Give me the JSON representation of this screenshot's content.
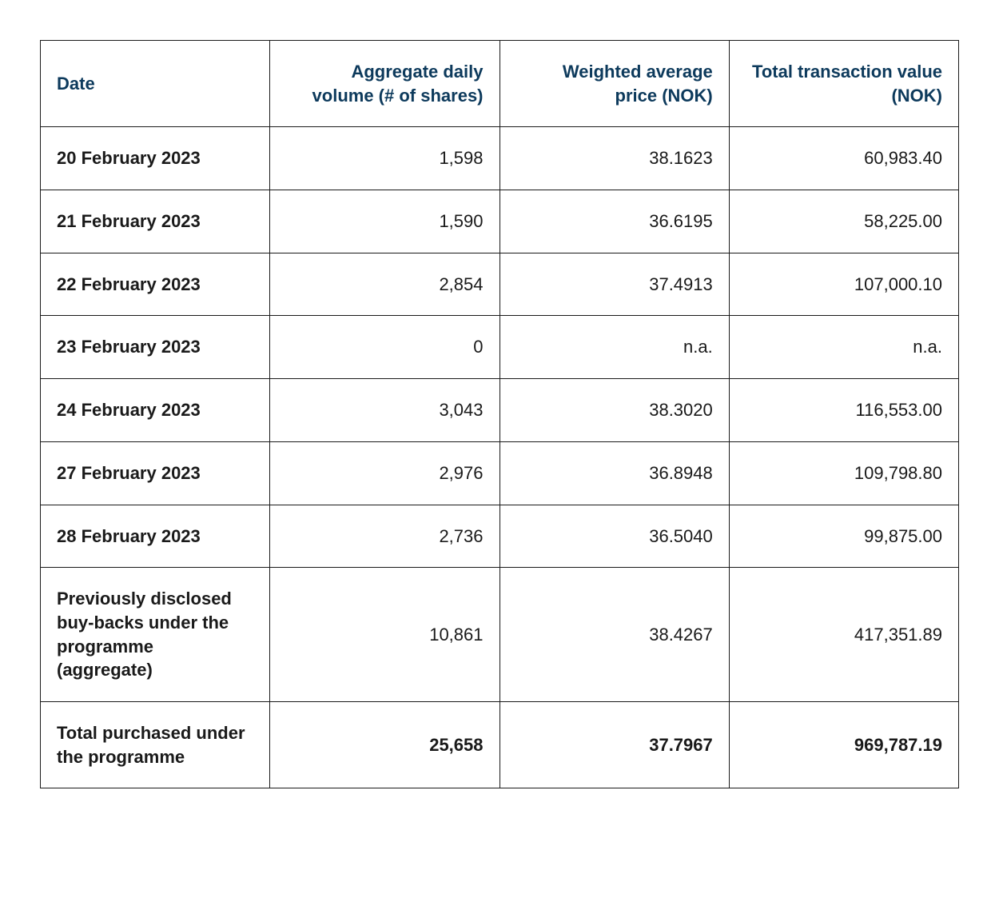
{
  "table": {
    "columns": [
      "Date",
      "Aggregate daily volume (# of shares)",
      "Weighted average price (NOK)",
      "Total transaction value (NOK)"
    ],
    "rows": [
      {
        "date": "20 February 2023",
        "volume": "1,598",
        "price": "38.1623",
        "value": "60,983.40",
        "bold": false
      },
      {
        "date": "21 February 2023",
        "volume": "1,590",
        "price": "36.6195",
        "value": "58,225.00",
        "bold": false
      },
      {
        "date": "22 February 2023",
        "volume": "2,854",
        "price": "37.4913",
        "value": "107,000.10",
        "bold": false
      },
      {
        "date": "23 February 2023",
        "volume": "0",
        "price": "n.a.",
        "value": "n.a.",
        "bold": false
      },
      {
        "date": "24 February 2023",
        "volume": "3,043",
        "price": "38.3020",
        "value": "116,553.00",
        "bold": false
      },
      {
        "date": "27 February 2023",
        "volume": "2,976",
        "price": "36.8948",
        "value": "109,798.80",
        "bold": false
      },
      {
        "date": "28 February 2023",
        "volume": "2,736",
        "price": "36.5040",
        "value": "99,875.00",
        "bold": false
      },
      {
        "date": "Previously disclosed buy-backs under the programme (aggregate)",
        "volume": "10,861",
        "price": "38.4267",
        "value": "417,351.89",
        "bold": false
      },
      {
        "date": "Total purchased under the programme",
        "volume": "25,658",
        "price": "37.7967",
        "value": "969,787.19",
        "bold": true
      }
    ],
    "styling": {
      "header_color": "#0d3a5c",
      "border_color": "#1a1a1a",
      "text_color": "#1a1a1a",
      "background_color": "#ffffff",
      "font_size": 22,
      "header_font_weight": 700,
      "first_col_font_weight": 700,
      "cell_padding": "24px 20px",
      "column_alignment": [
        "left",
        "right",
        "right",
        "right"
      ]
    }
  }
}
